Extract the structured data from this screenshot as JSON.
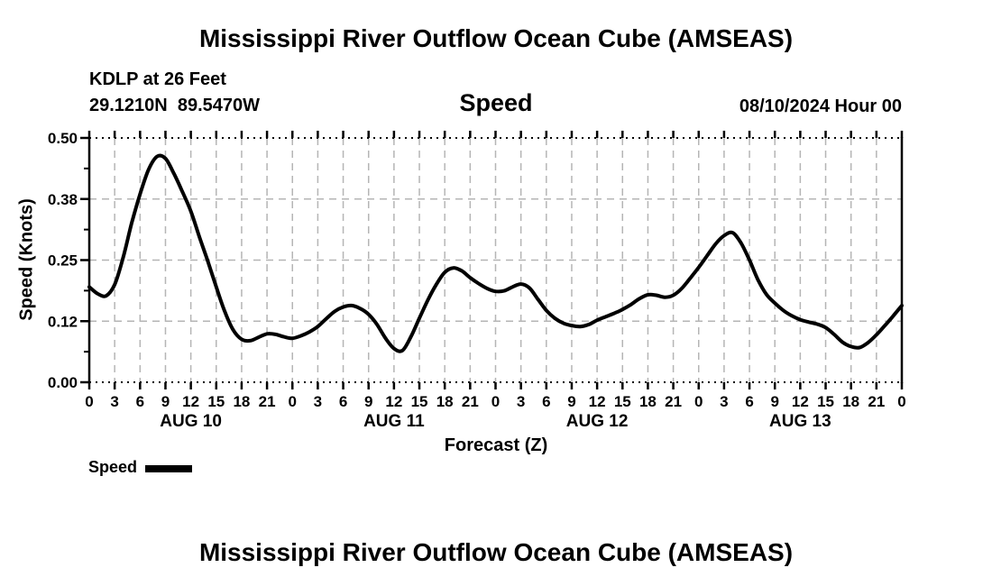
{
  "page": {
    "top_title": "Mississippi River Outflow Ocean Cube (AMSEAS)",
    "bottom_title": "Mississippi River Outflow Ocean Cube (AMSEAS)"
  },
  "header": {
    "station": "KDLP at 26 Feet",
    "coordinates": "29.1210N  89.5470W",
    "panel_title": "Speed",
    "run_datetime": "08/10/2024 Hour 00"
  },
  "legend": {
    "label": "Speed",
    "swatch": "thick-black-line"
  },
  "colors": {
    "line": "#000000",
    "grid": "#b5b5b5",
    "frame": "#000000",
    "text": "#000000",
    "background": "#ffffff"
  },
  "chart_data": {
    "type": "line",
    "title": "Speed",
    "xlabel": "Forecast (Z)",
    "ylabel": "Speed (Knots)",
    "x_unit": "forecast hour (Z) starting 08/10/2024 00Z",
    "xlim": [
      0,
      96
    ],
    "ylim": [
      0,
      0.5
    ],
    "grid": "dashed-gray, vertical every 3 h, horizontal at labeled ticks",
    "legend_position": "below-left",
    "y_ticks": [
      {
        "value": 0.0,
        "label": "0.00"
      },
      {
        "value": 0.125,
        "label": "0.12"
      },
      {
        "value": 0.25,
        "label": "0.25"
      },
      {
        "value": 0.375,
        "label": "0.38"
      },
      {
        "value": 0.5,
        "label": "0.50"
      }
    ],
    "y_minor_ticks": [
      0.0625,
      0.1875,
      0.3125,
      0.4375
    ],
    "grid_horizontal_values": [
      0.125,
      0.25,
      0.375
    ],
    "x_tick_step_hours": 3,
    "x_tick_labels": [
      "0",
      "3",
      "6",
      "9",
      "12",
      "15",
      "18",
      "21",
      "0",
      "3",
      "6",
      "9",
      "12",
      "15",
      "18",
      "21",
      "0",
      "3",
      "6",
      "9",
      "12",
      "15",
      "18",
      "21",
      "0",
      "3",
      "6",
      "9",
      "12",
      "15",
      "18",
      "21",
      "0"
    ],
    "day_labels": [
      {
        "label": "AUG 10",
        "center_hour": 12
      },
      {
        "label": "AUG 11",
        "center_hour": 36
      },
      {
        "label": "AUG 12",
        "center_hour": 60
      },
      {
        "label": "AUG 13",
        "center_hour": 84
      }
    ],
    "series": [
      {
        "name": "Speed",
        "color": "#000000",
        "points": [
          [
            0,
            0.195
          ],
          [
            1,
            0.181
          ],
          [
            2,
            0.177
          ],
          [
            3,
            0.2
          ],
          [
            4,
            0.255
          ],
          [
            5,
            0.325
          ],
          [
            6,
            0.385
          ],
          [
            7,
            0.435
          ],
          [
            8,
            0.462
          ],
          [
            9,
            0.458
          ],
          [
            10,
            0.427
          ],
          [
            11,
            0.39
          ],
          [
            12,
            0.35
          ],
          [
            13,
            0.298
          ],
          [
            14,
            0.248
          ],
          [
            15,
            0.195
          ],
          [
            16,
            0.145
          ],
          [
            17,
            0.107
          ],
          [
            18,
            0.088
          ],
          [
            19,
            0.085
          ],
          [
            20,
            0.092
          ],
          [
            21,
            0.099
          ],
          [
            22,
            0.098
          ],
          [
            23,
            0.093
          ],
          [
            24,
            0.09
          ],
          [
            25,
            0.095
          ],
          [
            26,
            0.103
          ],
          [
            27,
            0.114
          ],
          [
            28,
            0.13
          ],
          [
            29,
            0.145
          ],
          [
            30,
            0.154
          ],
          [
            31,
            0.157
          ],
          [
            32,
            0.151
          ],
          [
            33,
            0.139
          ],
          [
            34,
            0.118
          ],
          [
            35,
            0.09
          ],
          [
            36,
            0.069
          ],
          [
            37,
            0.065
          ],
          [
            38,
            0.093
          ],
          [
            39,
            0.131
          ],
          [
            40,
            0.168
          ],
          [
            41,
            0.2
          ],
          [
            42,
            0.225
          ],
          [
            43,
            0.234
          ],
          [
            44,
            0.228
          ],
          [
            45,
            0.214
          ],
          [
            46,
            0.202
          ],
          [
            47,
            0.192
          ],
          [
            48,
            0.186
          ],
          [
            49,
            0.187
          ],
          [
            50,
            0.195
          ],
          [
            51,
            0.201
          ],
          [
            52,
            0.193
          ],
          [
            53,
            0.17
          ],
          [
            54,
            0.147
          ],
          [
            55,
            0.131
          ],
          [
            56,
            0.121
          ],
          [
            57,
            0.116
          ],
          [
            58,
            0.114
          ],
          [
            59,
            0.118
          ],
          [
            60,
            0.127
          ],
          [
            61,
            0.134
          ],
          [
            62,
            0.141
          ],
          [
            63,
            0.149
          ],
          [
            64,
            0.159
          ],
          [
            65,
            0.171
          ],
          [
            66,
            0.179
          ],
          [
            67,
            0.178
          ],
          [
            68,
            0.174
          ],
          [
            69,
            0.178
          ],
          [
            70,
            0.192
          ],
          [
            71,
            0.213
          ],
          [
            72,
            0.235
          ],
          [
            73,
            0.259
          ],
          [
            74,
            0.283
          ],
          [
            75,
            0.3
          ],
          [
            76,
            0.306
          ],
          [
            77,
            0.285
          ],
          [
            78,
            0.25
          ],
          [
            79,
            0.21
          ],
          [
            80,
            0.18
          ],
          [
            81,
            0.162
          ],
          [
            82,
            0.147
          ],
          [
            83,
            0.136
          ],
          [
            84,
            0.128
          ],
          [
            85,
            0.123
          ],
          [
            86,
            0.119
          ],
          [
            87,
            0.112
          ],
          [
            88,
            0.098
          ],
          [
            89,
            0.082
          ],
          [
            90,
            0.073
          ],
          [
            91,
            0.071
          ],
          [
            92,
            0.081
          ],
          [
            93,
            0.097
          ],
          [
            94,
            0.116
          ],
          [
            95,
            0.136
          ],
          [
            96,
            0.157
          ]
        ]
      }
    ]
  }
}
